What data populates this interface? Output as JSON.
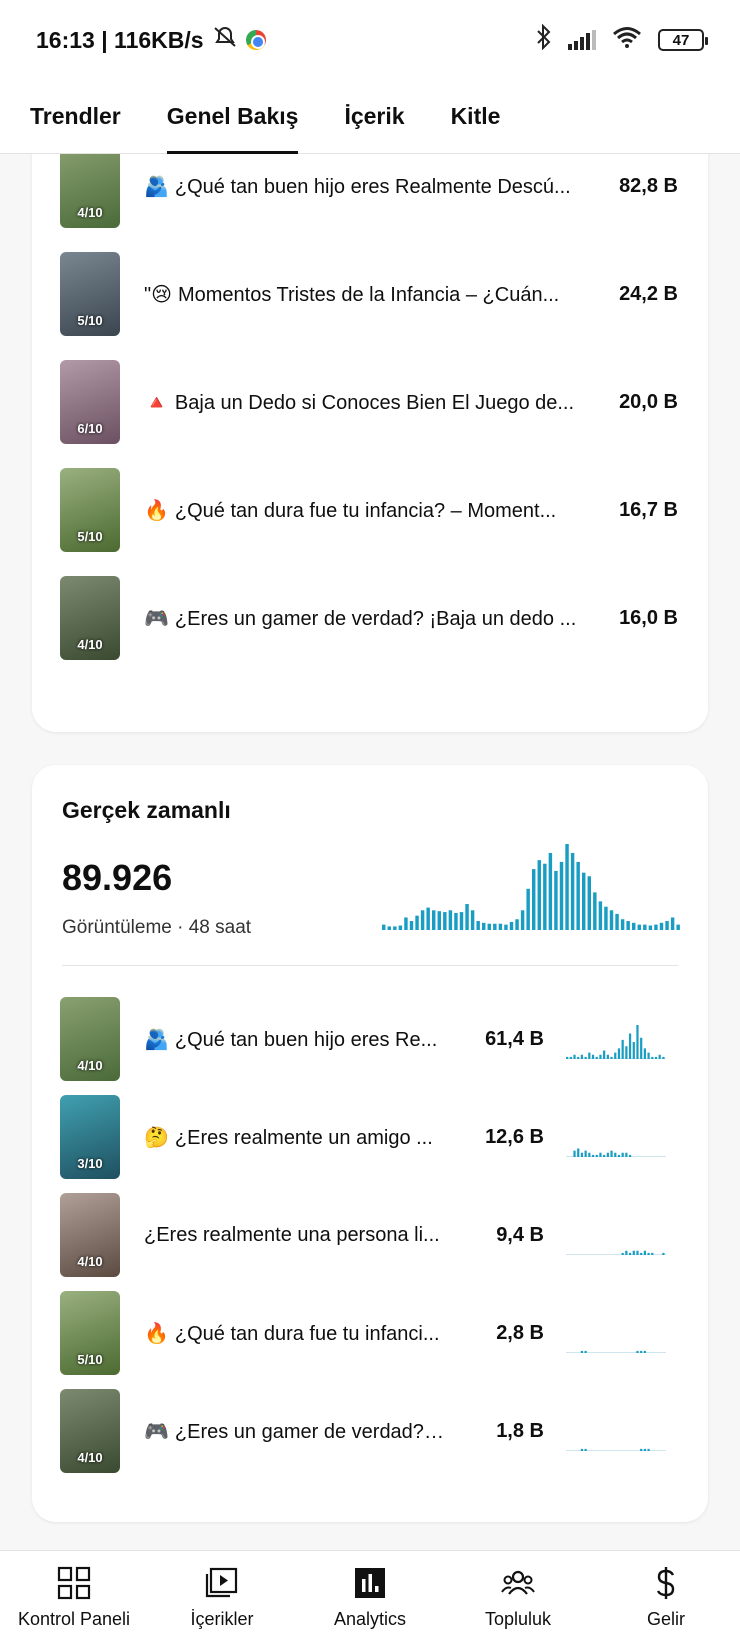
{
  "status_bar": {
    "time_speed": "16:13 | 116KB/s",
    "battery": "47"
  },
  "tabs": [
    {
      "label": "Trendler",
      "active": false
    },
    {
      "label": "Genel Bakış",
      "active": true
    },
    {
      "label": "İçerik",
      "active": false
    },
    {
      "label": "Kitle",
      "active": false
    }
  ],
  "top_content": {
    "items": [
      {
        "emoji": "🫂",
        "title": "¿Qué tan buen hijo eres Realmente Descú...",
        "value": "82,8 B",
        "thumb_label": "4/10",
        "thumb_color": "#5a7a4a"
      },
      {
        "emoji": "\"😢",
        "title": "Momentos Tristes de la Infancia – ¿Cuán...",
        "value": "24,2 B",
        "thumb_label": "5/10",
        "thumb_color": "#4a5560"
      },
      {
        "emoji": "🔺",
        "title": "Baja un Dedo si Conoces Bien El Juego de...",
        "value": "20,0 B",
        "thumb_label": "6/10",
        "thumb_color": "#8a7080"
      },
      {
        "emoji": "🔥",
        "title": "¿Qué tan dura fue tu infancia? – Moment...",
        "value": "16,7 B",
        "thumb_label": "5/10",
        "thumb_color": "#6b8a50"
      },
      {
        "emoji": "🎮",
        "title": "¿Eres un gamer de verdad? ¡Baja un dedo ...",
        "value": "16,0 B",
        "thumb_label": "4/10",
        "thumb_color": "#4f5e48"
      }
    ]
  },
  "realtime": {
    "title": "Gerçek zamanlı",
    "count": "89.926",
    "subtitle": "Görüntüleme · 48 saat",
    "accent": "#1a9dc3",
    "chart_data": {
      "type": "bar",
      "values": [
        6,
        4,
        4,
        5,
        14,
        10,
        16,
        22,
        25,
        22,
        21,
        20,
        22,
        19,
        20,
        29,
        22,
        10,
        8,
        7,
        7,
        7,
        6,
        9,
        12,
        22,
        46,
        68,
        78,
        74,
        86,
        66,
        76,
        96,
        86,
        76,
        64,
        60,
        42,
        32,
        26,
        22,
        18,
        12,
        10,
        8,
        6,
        6,
        5,
        6,
        8,
        10,
        14,
        6
      ]
    },
    "items": [
      {
        "emoji": "🫂",
        "title": "¿Qué tan buen hijo eres Re...",
        "value": "61,4 B",
        "thumb_label": "4/10",
        "thumb_color": "#5a7a4a",
        "spark": [
          1,
          1,
          2,
          1,
          2,
          1,
          3,
          2,
          1,
          2,
          4,
          2,
          1,
          3,
          5,
          9,
          6,
          12,
          8,
          16,
          10,
          5,
          3,
          1,
          1,
          2,
          1
        ]
      },
      {
        "emoji": "🤔",
        "title": "¿Eres realmente un amigo ...",
        "value": "12,6 B",
        "thumb_label": "3/10",
        "thumb_color": "#2f7f8f",
        "spark": [
          0,
          0,
          3,
          4,
          2,
          3,
          2,
          1,
          1,
          2,
          1,
          2,
          3,
          2,
          1,
          2,
          2,
          1,
          0,
          0,
          0,
          0,
          0,
          0,
          0,
          0,
          0
        ]
      },
      {
        "emoji": "",
        "title": "¿Eres realmente una persona li...",
        "value": "9,4 B",
        "thumb_label": "4/10",
        "thumb_color": "#7d7068",
        "spark": [
          0,
          0,
          0,
          0,
          0,
          0,
          0,
          0,
          0,
          0,
          0,
          0,
          0,
          0,
          0,
          1,
          2,
          1,
          2,
          2,
          1,
          2,
          1,
          1,
          0,
          0,
          1
        ]
      },
      {
        "emoji": "🔥",
        "title": "¿Qué tan dura fue tu infanci...",
        "value": "2,8 B",
        "thumb_label": "5/10",
        "thumb_color": "#6b8a50",
        "spark": [
          0,
          0,
          0,
          0,
          1,
          1,
          0,
          0,
          0,
          0,
          0,
          0,
          0,
          0,
          0,
          0,
          0,
          0,
          0,
          1,
          1,
          1,
          0,
          0,
          0,
          0,
          0
        ]
      },
      {
        "emoji": "🎮",
        "title": "¿Eres un gamer de verdad? ...",
        "value": "1,8 B",
        "thumb_label": "4/10",
        "thumb_color": "#4f5e48",
        "spark": [
          0,
          0,
          0,
          0,
          1,
          1,
          0,
          0,
          0,
          0,
          0,
          0,
          0,
          0,
          0,
          0,
          0,
          0,
          0,
          0,
          1,
          1,
          1,
          0,
          0,
          0,
          0
        ]
      }
    ]
  },
  "bottom_nav": [
    {
      "label": "Kontrol Paneli",
      "icon": "dashboard-icon"
    },
    {
      "label": "İçerikler",
      "icon": "content-icon"
    },
    {
      "label": "Analytics",
      "icon": "analytics-icon"
    },
    {
      "label": "Topluluk",
      "icon": "community-icon"
    },
    {
      "label": "Gelir",
      "icon": "earn-icon"
    }
  ]
}
